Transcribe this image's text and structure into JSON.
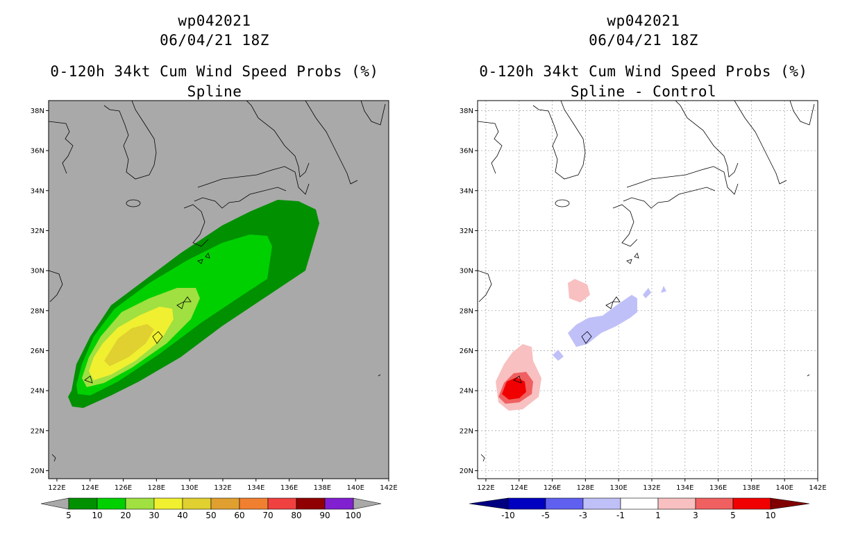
{
  "left": {
    "storm_id": "wp042021",
    "datetime": "06/04/21 18Z",
    "product": "0-120h 34kt Cum Wind Speed Probs (%)",
    "subtitle": "Spline",
    "background_color": "#a9a9a9",
    "colorbar": {
      "labels": [
        "5",
        "10",
        "20",
        "30",
        "40",
        "50",
        "60",
        "70",
        "80",
        "90",
        "100"
      ],
      "colors": [
        "#009000",
        "#00d000",
        "#a0e040",
        "#f0f030",
        "#e0d030",
        "#e0a030",
        "#f08030",
        "#f04040",
        "#900000",
        "#8020d0"
      ]
    },
    "probability_region": {
      "type": "filled-contour",
      "levels": [
        5,
        10,
        20,
        30,
        40
      ],
      "core_location_deg": [
        127.0,
        26.5
      ]
    }
  },
  "right": {
    "storm_id": "wp042021",
    "datetime": "06/04/21 18Z",
    "product": "0-120h 34kt Cum Wind Speed Probs (%)",
    "subtitle": "Spline - Control",
    "background_color": "#ffffff",
    "colorbar": {
      "labels": [
        "-10",
        "-5",
        "-3",
        "-1",
        "1",
        "3",
        "5",
        "10"
      ],
      "colors": [
        "#0000c0",
        "#6060f0",
        "#c0c0f8",
        "#ffffff",
        "#f8c0c0",
        "#f06060",
        "#f00000"
      ]
    },
    "difference_region": {
      "type": "filled-contour",
      "positive_max_location_deg": [
        123.8,
        24.0
      ],
      "negative_band": "125E-131E along 25N-28.5N"
    }
  },
  "axes": {
    "lon_labels": [
      "122E",
      "124E",
      "126E",
      "128E",
      "130E",
      "132E",
      "134E",
      "136E",
      "138E",
      "140E",
      "142E"
    ],
    "lat_labels": [
      "20N",
      "22N",
      "24N",
      "26N",
      "28N",
      "30N",
      "32N",
      "34N",
      "36N",
      "38N"
    ],
    "lon_range": [
      121.5,
      142.0
    ],
    "lat_range": [
      19.6,
      38.5
    ]
  }
}
